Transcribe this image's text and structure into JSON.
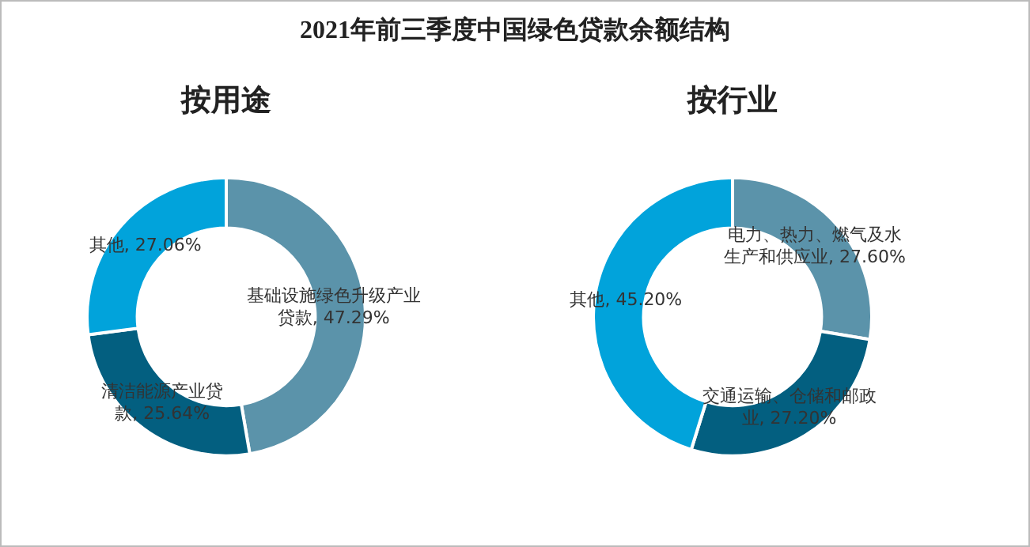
{
  "chart_data": [
    {
      "type": "donut",
      "title": "2021年前三季度中国绿色贷款余额结构",
      "subtitle": "按用途",
      "categories": [
        "基础设施绿色升级产业贷款",
        "清洁能源产业贷款",
        "其他"
      ],
      "values": [
        47.29,
        25.64,
        27.06
      ],
      "value_labels": [
        "47.29%",
        "25.64%",
        "27.06%"
      ],
      "colors": [
        "#5b93aa",
        "#035f80",
        "#01a3db"
      ],
      "legend": false
    },
    {
      "type": "donut",
      "subtitle": "按行业",
      "categories": [
        "电力、热力、燃气及水生产和供应业",
        "交通运输、仓储和邮政业",
        "其他"
      ],
      "values": [
        27.6,
        27.2,
        45.2
      ],
      "value_labels": [
        "27.60%",
        "27.20%",
        "45.20%"
      ],
      "colors": [
        "#5b93aa",
        "#035f80",
        "#01a3db"
      ],
      "legend": false
    }
  ]
}
